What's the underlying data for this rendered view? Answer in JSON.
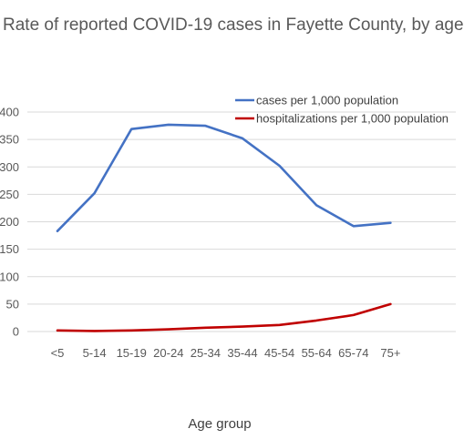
{
  "chart_data": {
    "type": "line",
    "title": "Rate of reported COVID-19 cases in Fayette County, by age",
    "xlabel": "Age group",
    "ylabel": "",
    "categories": [
      "<5",
      "5-14",
      "15-19",
      "20-24",
      "25-34",
      "35-44",
      "45-54",
      "55-64",
      "65-74",
      "75+"
    ],
    "ylim": [
      0,
      400
    ],
    "yticks": [
      0,
      50,
      100,
      150,
      200,
      250,
      300,
      350,
      400
    ],
    "ytick_labels": [
      "0",
      "50",
      "100",
      "150",
      "200",
      "250",
      "300",
      "350",
      "400"
    ],
    "grid": true,
    "legend_position": "top-right",
    "series": [
      {
        "name": "cases per 1,000 population",
        "color": "#4472C4",
        "values": [
          183,
          252,
          369,
          377,
          375,
          352,
          302,
          230,
          192,
          198
        ]
      },
      {
        "name": "hospitalizations per 1,000 population",
        "color": "#C00000",
        "values": [
          2,
          1,
          2,
          4,
          7,
          9,
          12,
          20,
          30,
          50
        ]
      }
    ]
  }
}
